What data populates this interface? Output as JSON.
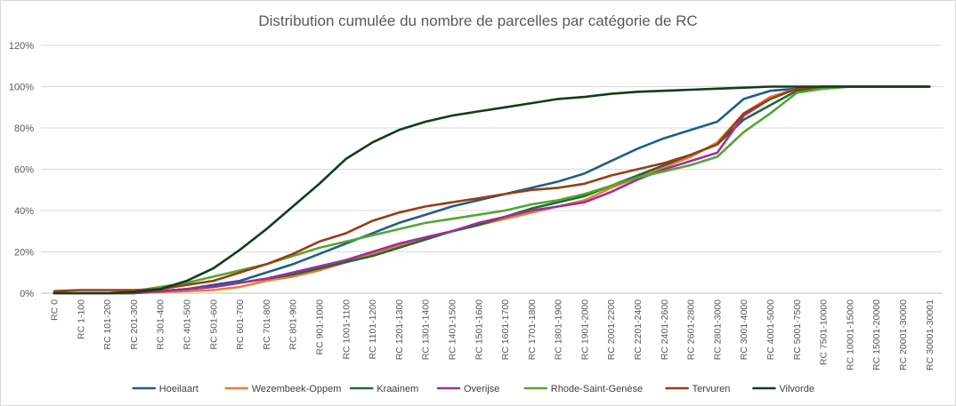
{
  "chart_data": {
    "type": "line",
    "title": "Distribution cumulée du nombre de parcelles par catégorie de RC",
    "xlabel": "",
    "ylabel": "",
    "ylim": [
      0,
      120
    ],
    "yticks": [
      "0%",
      "20%",
      "40%",
      "60%",
      "80%",
      "100%",
      "120%"
    ],
    "grid": true,
    "legend_position": "bottom",
    "categories": [
      "RC 0",
      "RC 1-100",
      "RC 101-200",
      "RC 201-300",
      "RC 301-400",
      "RC 401-500",
      "RC 501-600",
      "RC 601-700",
      "RC 701-800",
      "RC 801-900",
      "RC 901-1000",
      "RC 1001-1100",
      "RC 1101-1200",
      "RC 1201-1300",
      "RC 1301-1400",
      "RC 1401-1500",
      "RC 1501-1600",
      "RC 1601-1700",
      "RC 1701-1800",
      "RC 1801-1900",
      "RC 1901-2000",
      "RC 2001-2200",
      "RC 2201-2400",
      "RC 2401-2600",
      "RC 2601-2800",
      "RC 2801-3000",
      "RC 3001-4000",
      "RC 4001-5000",
      "RC 5001-7500",
      "RC 7501-10000",
      "RC 10001-15000",
      "RC 15001-20000",
      "RC 20001-30000",
      "RC 30001-30001"
    ],
    "series": [
      {
        "name": "Hoeilaart",
        "color": "#1f5f86",
        "values": [
          0,
          0,
          0,
          0,
          1,
          2,
          4,
          6,
          10,
          14,
          19,
          24,
          29,
          34,
          38,
          42,
          45,
          48,
          51,
          54,
          58,
          64,
          70,
          75,
          79,
          83,
          94,
          98,
          99,
          100,
          100,
          100,
          100,
          100
        ]
      },
      {
        "name": "Wezembeek-Oppem",
        "color": "#ed7d31",
        "values": [
          0,
          0,
          0,
          0,
          0.5,
          1,
          1.5,
          3,
          6,
          8,
          11,
          15,
          19,
          23,
          27,
          30,
          33,
          36,
          39,
          42,
          45,
          51,
          56,
          61,
          66,
          73,
          87,
          95,
          99,
          100,
          100,
          100,
          100,
          100
        ]
      },
      {
        "name": "Kraainem",
        "color": "#1e6b36",
        "values": [
          0,
          0,
          0,
          0,
          1,
          2,
          3,
          5,
          7,
          9,
          12,
          15,
          18,
          22,
          26,
          30,
          33,
          37,
          41,
          44,
          47,
          52,
          57,
          62,
          67,
          72,
          84,
          91,
          98,
          99,
          100,
          100,
          100,
          100
        ]
      },
      {
        "name": "Overijse",
        "color": "#9e2f9c",
        "values": [
          0,
          0,
          0,
          0,
          1,
          2,
          3,
          5,
          7,
          10,
          13,
          16,
          20,
          24,
          27,
          30,
          34,
          37,
          40,
          42,
          44,
          49,
          55,
          60,
          64,
          68,
          86,
          94,
          99,
          100,
          100,
          100,
          100,
          100
        ]
      },
      {
        "name": "Rhode-Saint-Genèse",
        "color": "#55a532",
        "values": [
          0,
          0,
          0,
          1,
          3,
          5,
          8,
          11,
          14,
          18,
          22,
          25,
          28,
          31,
          34,
          36,
          38,
          40,
          43,
          45,
          48,
          52,
          56,
          59,
          62,
          66,
          78,
          87,
          97,
          99,
          100,
          100,
          100,
          100
        ]
      },
      {
        "name": "Tervuren",
        "color": "#9a3d13",
        "values": [
          1,
          1.5,
          1.5,
          1.5,
          2,
          4,
          6,
          10,
          14,
          19,
          25,
          29,
          35,
          39,
          42,
          44,
          46,
          48,
          50,
          51,
          53,
          57,
          60,
          63,
          67,
          72,
          87,
          94,
          99,
          100,
          100,
          100,
          100,
          100
        ]
      },
      {
        "name": "Vilvorde",
        "color": "#123d1b",
        "values": [
          0,
          0,
          0,
          0.5,
          2,
          6,
          12,
          21,
          31,
          42,
          53,
          65,
          73,
          79,
          83,
          86,
          88,
          90,
          92,
          94,
          95,
          96.5,
          97.5,
          98,
          98.5,
          99,
          99.5,
          100,
          100,
          100,
          100,
          100,
          100,
          100
        ]
      }
    ]
  }
}
